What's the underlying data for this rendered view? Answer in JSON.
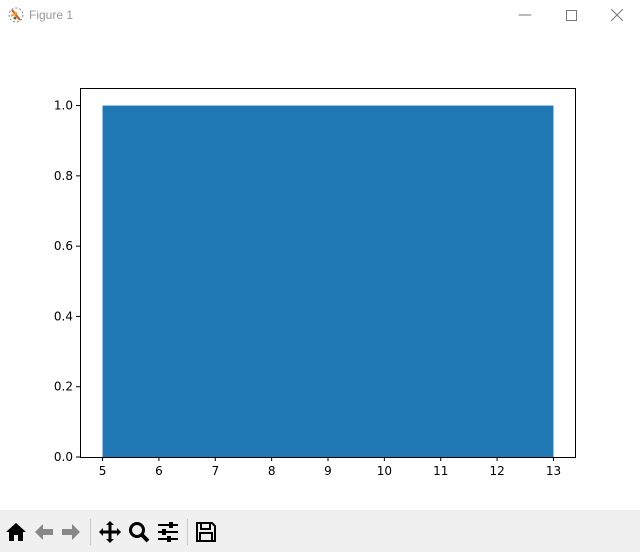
{
  "window": {
    "title": "Figure 1",
    "app_icon": "matplotlib-icon",
    "controls": [
      "minimize-icon",
      "maximize-icon",
      "close-icon"
    ]
  },
  "toolbar": {
    "buttons": [
      "home-icon",
      "back-icon",
      "forward-icon",
      "pan-icon",
      "zoom-icon",
      "configure-subplots-icon",
      "save-icon"
    ]
  },
  "chart_data": {
    "type": "bar",
    "bars": [
      {
        "left": 5,
        "right": 13,
        "height": 1.0
      }
    ],
    "color": "#1f77b4",
    "xlim": [
      4.6,
      13.4
    ],
    "ylim": [
      0,
      1.05
    ],
    "xticks": [
      "5",
      "6",
      "7",
      "8",
      "9",
      "10",
      "11",
      "12",
      "13"
    ],
    "yticks": [
      "0.0",
      "0.2",
      "0.4",
      "0.6",
      "0.8",
      "1.0"
    ],
    "grid": false
  }
}
